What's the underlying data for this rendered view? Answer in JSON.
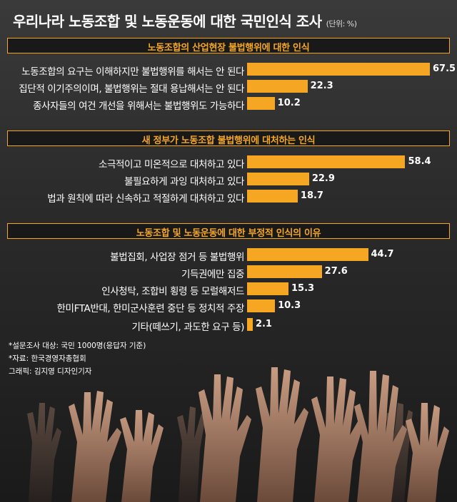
{
  "title": "우리나라 노동조합 및 노동운동에 대한 국민인식 조사",
  "unit": "(단위: %)",
  "chart_data": [
    {
      "type": "bar",
      "title": "노동조합의 산업현장 불법행위에 대한 인식",
      "categories": [
        "노동조합의 요구는 이해하지만 불법행위를 해서는 안 된다",
        "집단적 이기주의이며, 불법행위는 절대 용납해서는 안 된다",
        "종사자들의 여건 개선을 위해서는 불법행위도 가능하다"
      ],
      "values": [
        67.5,
        22.3,
        10.2
      ],
      "xlim": [
        0,
        70
      ]
    },
    {
      "type": "bar",
      "title": "새 정부가 노동조합 불법행위에 대처하는 인식",
      "categories": [
        "소극적이고 미온적으로 대처하고 있다",
        "불필요하게 과잉 대처하고 있다",
        "법과 원칙에 따라 신속하고 적절하게 대처하고 있다"
      ],
      "values": [
        58.4,
        22.9,
        18.7
      ],
      "xlim": [
        0,
        70
      ]
    },
    {
      "type": "bar",
      "title": "노동조합 및 노동운동에 대한 부정적 인식의 이유",
      "categories": [
        "불법집회, 사업장 점거 등 불법행위",
        "기득권에만 집중",
        "인사청탁, 조합비 횡령 등 모럴해저드",
        "한미FTA반대, 한미군사훈련 중단 등 정치적 주장",
        "기타(떼쓰기, 과도한 요구 등)"
      ],
      "values": [
        44.7,
        27.6,
        15.3,
        10.3,
        2.1
      ],
      "xlim": [
        0,
        70
      ]
    }
  ],
  "notes": [
    "*설문조사 대상: 국민 1000명(응답자 기준)",
    "*자료: 한국경영자총협회",
    "그래픽: 김지영 디자인기자"
  ],
  "colors": {
    "bar": "#f5a623",
    "header_text": "#f5a623",
    "background": "#2a2a2a"
  }
}
